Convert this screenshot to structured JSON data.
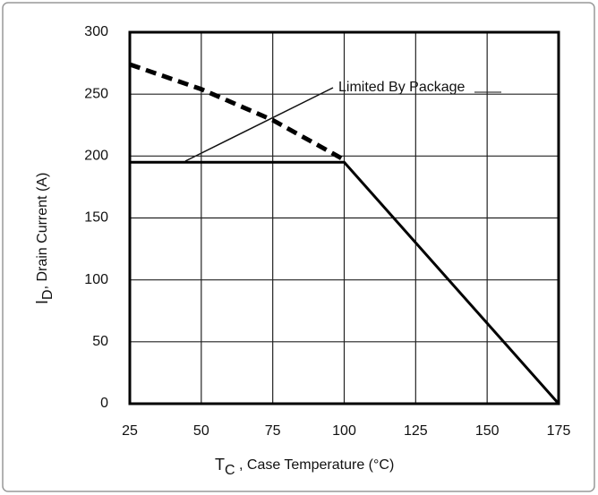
{
  "chart_data": {
    "type": "line",
    "xlabel": {
      "main": "T",
      "sub": "C",
      "rest": " , Case Temperature (°C)"
    },
    "ylabel": {
      "main": "I",
      "sub": "D",
      "rest": ",  Drain Current (A)"
    },
    "annotation": "Limited By Package",
    "xlim": [
      25,
      175
    ],
    "ylim": [
      0,
      300
    ],
    "xticks": [
      25,
      50,
      75,
      100,
      125,
      150,
      175
    ],
    "yticks": [
      0,
      50,
      100,
      150,
      200,
      250,
      300
    ],
    "grid": true,
    "series": [
      {
        "color": "#000000",
        "style": "solid",
        "x": [
          25,
          100,
          175
        ],
        "values": [
          195,
          195,
          0
        ]
      },
      {
        "color": "#000000",
        "style": "dashed",
        "x": [
          25,
          50,
          75,
          100
        ],
        "values": [
          274,
          254,
          229,
          197
        ]
      }
    ]
  }
}
